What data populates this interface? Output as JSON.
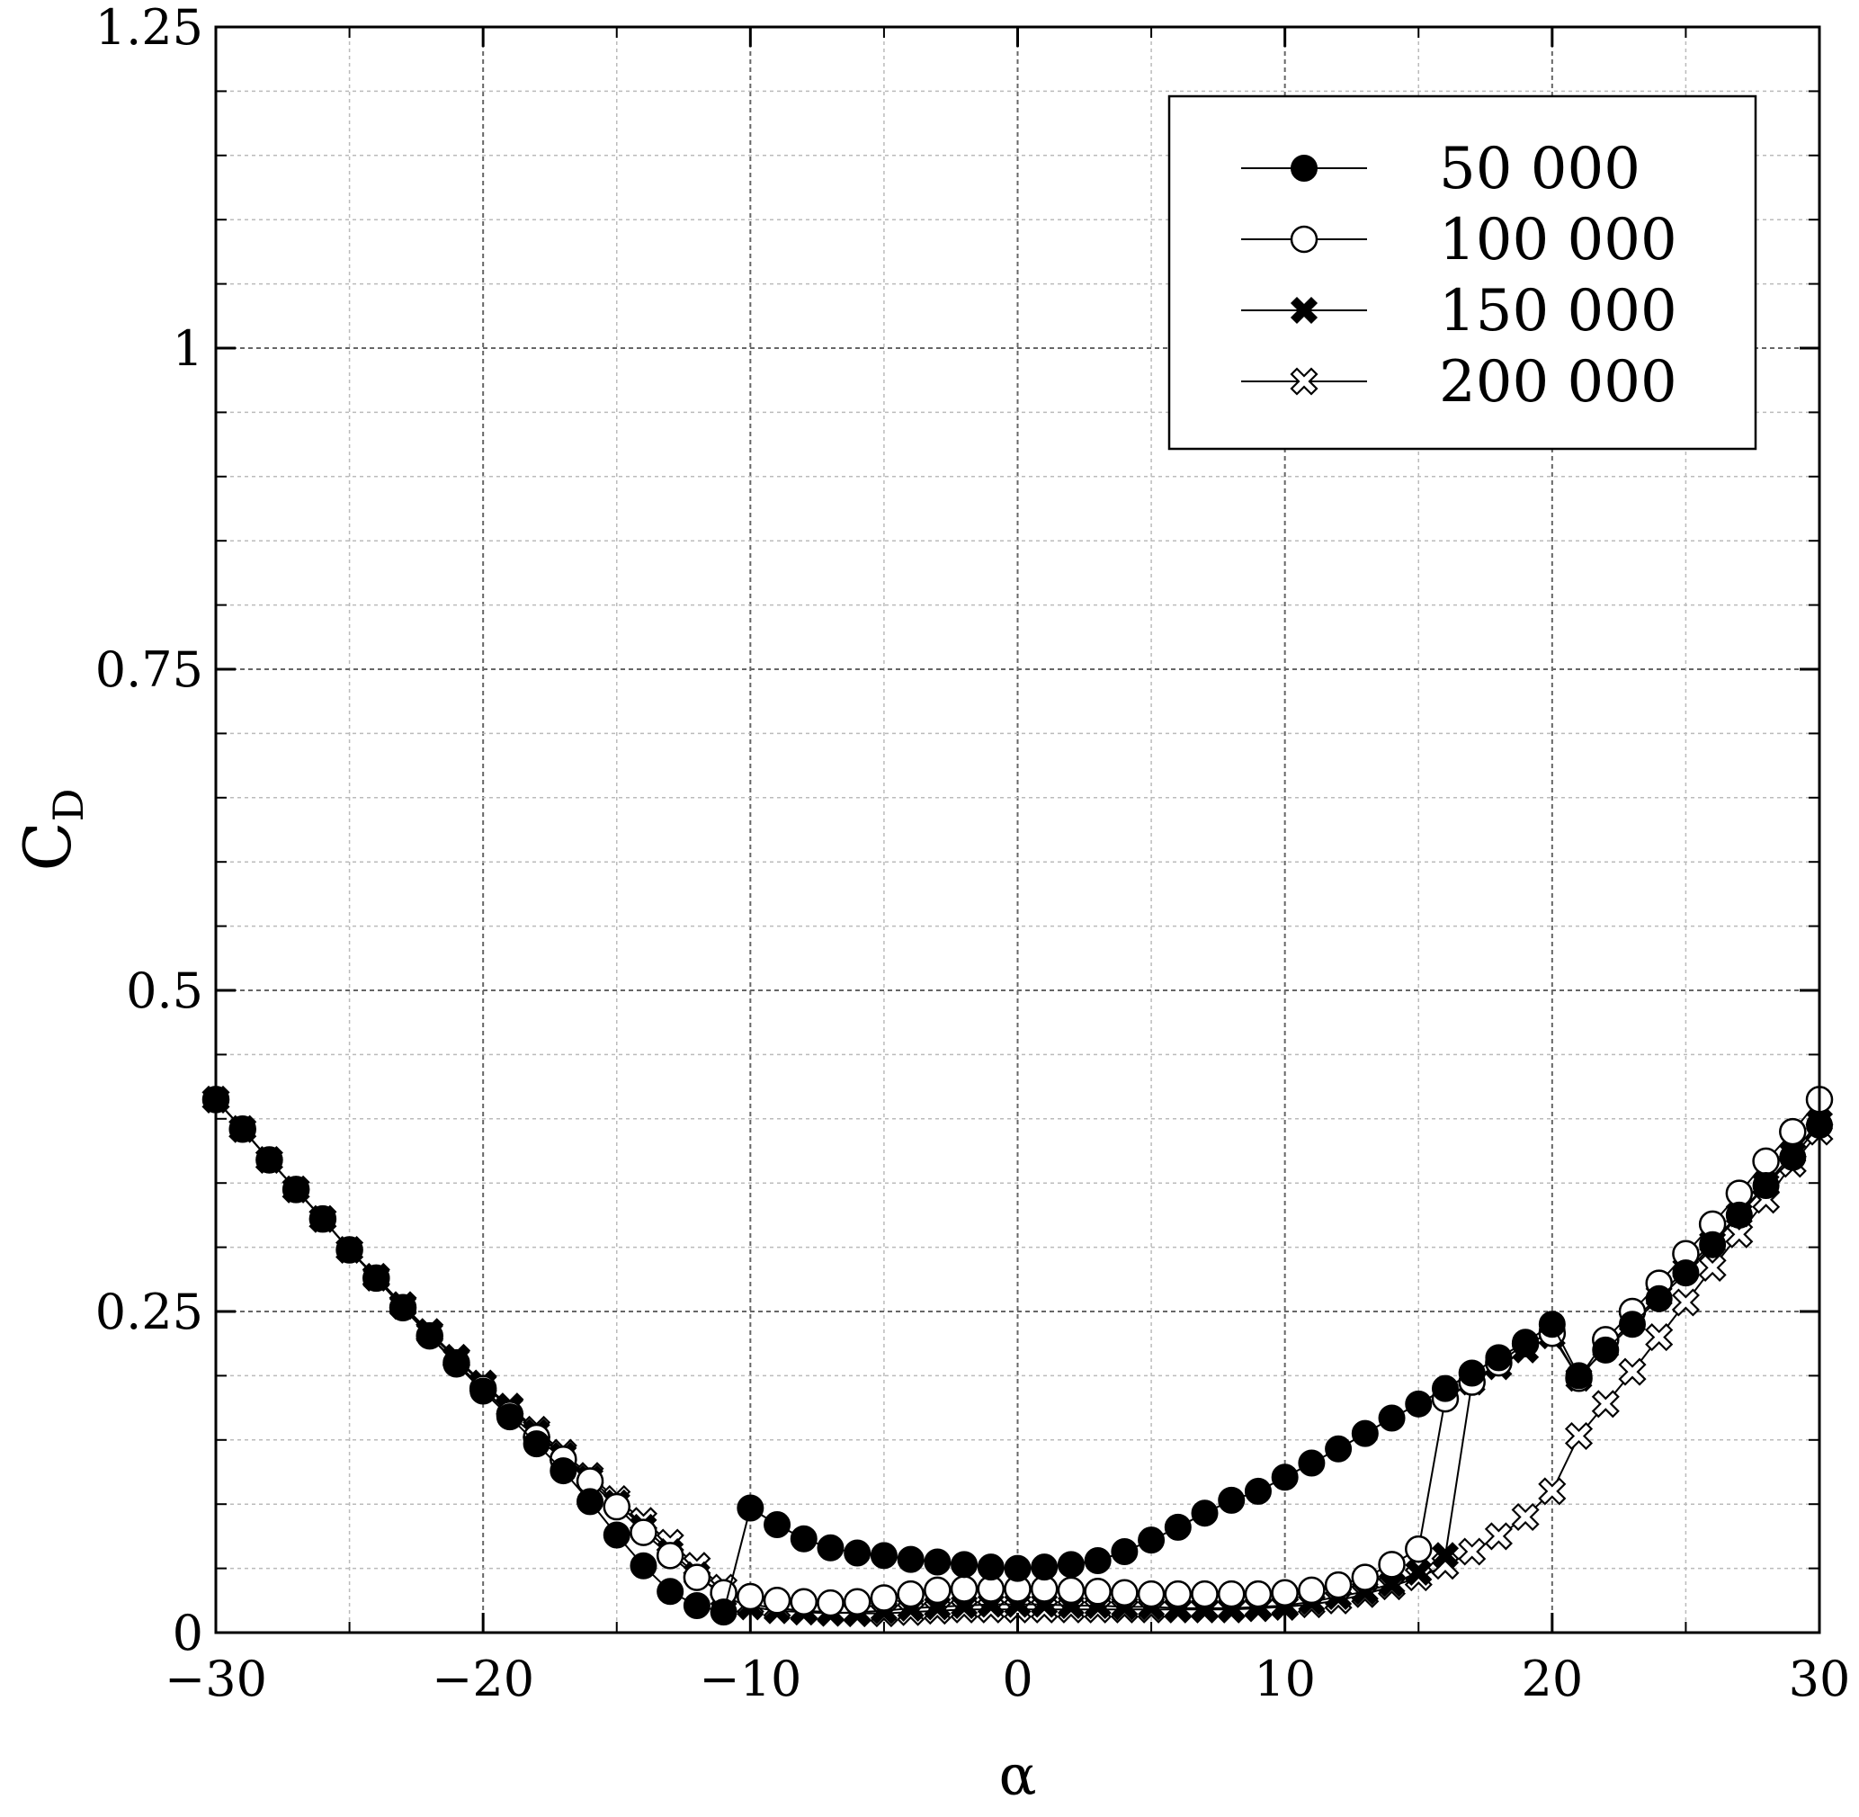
{
  "chart_data": {
    "type": "line",
    "title": "",
    "xlabel": "α",
    "ylabel": {
      "main": "C",
      "sub": "D"
    },
    "xlim": [
      -30,
      30
    ],
    "ylim": [
      0,
      1.25
    ],
    "x_ticks": [
      -30,
      -20,
      -10,
      0,
      10,
      20,
      30
    ],
    "x_tick_labels": [
      "−30",
      "−20",
      "−10",
      "0",
      "10",
      "20",
      "30"
    ],
    "y_ticks": [
      0,
      0.25,
      0.5,
      0.75,
      1,
      1.25
    ],
    "y_tick_labels": [
      "0",
      "0.25",
      "0.5",
      "0.75",
      "1",
      "1.25"
    ],
    "grid": true,
    "minor_grid": true,
    "legend_position": "top-right",
    "series": [
      {
        "name": "50 000",
        "marker": "filled-circle",
        "points": [
          [
            -30,
            0.415
          ],
          [
            -29,
            0.392
          ],
          [
            -28,
            0.368
          ],
          [
            -27,
            0.345
          ],
          [
            -26,
            0.322
          ],
          [
            -25,
            0.298
          ],
          [
            -24,
            0.276
          ],
          [
            -23,
            0.253
          ],
          [
            -22,
            0.231
          ],
          [
            -21,
            0.209
          ],
          [
            -20,
            0.188
          ],
          [
            -19,
            0.168
          ],
          [
            -18,
            0.147
          ],
          [
            -17,
            0.126
          ],
          [
            -16,
            0.102
          ],
          [
            -15,
            0.076
          ],
          [
            -14,
            0.052
          ],
          [
            -13,
            0.032
          ],
          [
            -12,
            0.021
          ],
          [
            -11,
            0.016
          ],
          [
            -10,
            0.097
          ],
          [
            -9,
            0.084
          ],
          [
            -8,
            0.073
          ],
          [
            -7,
            0.066
          ],
          [
            -6,
            0.062
          ],
          [
            -5,
            0.06
          ],
          [
            -4,
            0.057
          ],
          [
            -3,
            0.055
          ],
          [
            -2,
            0.053
          ],
          [
            -1,
            0.051
          ],
          [
            0,
            0.05
          ],
          [
            1,
            0.051
          ],
          [
            2,
            0.053
          ],
          [
            3,
            0.056
          ],
          [
            4,
            0.063
          ],
          [
            5,
            0.072
          ],
          [
            6,
            0.082
          ],
          [
            7,
            0.093
          ],
          [
            8,
            0.103
          ],
          [
            9,
            0.11
          ],
          [
            10,
            0.121
          ],
          [
            11,
            0.132
          ],
          [
            12,
            0.143
          ],
          [
            13,
            0.155
          ],
          [
            14,
            0.167
          ],
          [
            15,
            0.178
          ],
          [
            16,
            0.19
          ],
          [
            17,
            0.202
          ],
          [
            18,
            0.214
          ],
          [
            19,
            0.226
          ],
          [
            20,
            0.24
          ],
          [
            21,
            0.2
          ],
          [
            22,
            0.22
          ],
          [
            23,
            0.24
          ],
          [
            24,
            0.26
          ],
          [
            25,
            0.28
          ],
          [
            26,
            0.302
          ],
          [
            27,
            0.325
          ],
          [
            28,
            0.348
          ],
          [
            29,
            0.37
          ],
          [
            30,
            0.395
          ]
        ]
      },
      {
        "name": "100 000",
        "marker": "open-circle",
        "points": [
          [
            -30,
            0.415
          ],
          [
            -29,
            0.392
          ],
          [
            -28,
            0.368
          ],
          [
            -27,
            0.345
          ],
          [
            -26,
            0.322
          ],
          [
            -25,
            0.298
          ],
          [
            -24,
            0.276
          ],
          [
            -23,
            0.253
          ],
          [
            -22,
            0.231
          ],
          [
            -21,
            0.21
          ],
          [
            -20,
            0.19
          ],
          [
            -19,
            0.17
          ],
          [
            -18,
            0.152
          ],
          [
            -17,
            0.135
          ],
          [
            -16,
            0.118
          ],
          [
            -15,
            0.098
          ],
          [
            -14,
            0.078
          ],
          [
            -13,
            0.06
          ],
          [
            -12,
            0.043
          ],
          [
            -11,
            0.031
          ],
          [
            -10,
            0.028
          ],
          [
            -9,
            0.025
          ],
          [
            -8,
            0.024
          ],
          [
            -7,
            0.023
          ],
          [
            -6,
            0.024
          ],
          [
            -5,
            0.027
          ],
          [
            -4,
            0.03
          ],
          [
            -3,
            0.033
          ],
          [
            -2,
            0.034
          ],
          [
            -1,
            0.034
          ],
          [
            0,
            0.034
          ],
          [
            1,
            0.034
          ],
          [
            2,
            0.033
          ],
          [
            3,
            0.032
          ],
          [
            4,
            0.031
          ],
          [
            5,
            0.03
          ],
          [
            6,
            0.03
          ],
          [
            7,
            0.03
          ],
          [
            8,
            0.03
          ],
          [
            9,
            0.03
          ],
          [
            10,
            0.031
          ],
          [
            11,
            0.033
          ],
          [
            12,
            0.037
          ],
          [
            13,
            0.043
          ],
          [
            14,
            0.053
          ],
          [
            15,
            0.065
          ],
          [
            16,
            0.182
          ],
          [
            17,
            0.195
          ],
          [
            18,
            0.21
          ],
          [
            19,
            0.225
          ],
          [
            20,
            0.233
          ],
          [
            21,
            0.198
          ],
          [
            22,
            0.228
          ],
          [
            23,
            0.25
          ],
          [
            24,
            0.272
          ],
          [
            25,
            0.295
          ],
          [
            26,
            0.318
          ],
          [
            27,
            0.342
          ],
          [
            28,
            0.367
          ],
          [
            29,
            0.39
          ],
          [
            30,
            0.415
          ]
        ]
      },
      {
        "name": "150 000",
        "marker": "filled-cross",
        "points": [
          [
            -30,
            0.415
          ],
          [
            -29,
            0.392
          ],
          [
            -28,
            0.368
          ],
          [
            -27,
            0.345
          ],
          [
            -26,
            0.322
          ],
          [
            -25,
            0.298
          ],
          [
            -24,
            0.276
          ],
          [
            -23,
            0.254
          ],
          [
            -22,
            0.233
          ],
          [
            -21,
            0.213
          ],
          [
            -20,
            0.193
          ],
          [
            -19,
            0.175
          ],
          [
            -18,
            0.156
          ],
          [
            -17,
            0.138
          ],
          [
            -16,
            0.12
          ],
          [
            -15,
            0.101
          ],
          [
            -14,
            0.082
          ],
          [
            -13,
            0.063
          ],
          [
            -12,
            0.045
          ],
          [
            -11,
            0.028
          ],
          [
            -10,
            0.02
          ],
          [
            -9,
            0.017
          ],
          [
            -8,
            0.016
          ],
          [
            -7,
            0.015
          ],
          [
            -6,
            0.016
          ],
          [
            -5,
            0.017
          ],
          [
            -4,
            0.019
          ],
          [
            -3,
            0.02
          ],
          [
            -2,
            0.021
          ],
          [
            -1,
            0.022
          ],
          [
            0,
            0.022
          ],
          [
            1,
            0.022
          ],
          [
            2,
            0.021
          ],
          [
            3,
            0.021
          ],
          [
            4,
            0.02
          ],
          [
            5,
            0.02
          ],
          [
            6,
            0.019
          ],
          [
            7,
            0.019
          ],
          [
            8,
            0.019
          ],
          [
            9,
            0.02
          ],
          [
            10,
            0.021
          ],
          [
            11,
            0.024
          ],
          [
            12,
            0.028
          ],
          [
            13,
            0.032
          ],
          [
            14,
            0.038
          ],
          [
            15,
            0.047
          ],
          [
            16,
            0.06
          ],
          [
            17,
            0.195
          ],
          [
            18,
            0.207
          ],
          [
            19,
            0.22
          ],
          [
            20,
            0.231
          ],
          [
            21,
            0.198
          ],
          [
            22,
            0.222
          ],
          [
            23,
            0.242
          ],
          [
            24,
            0.262
          ],
          [
            25,
            0.283
          ],
          [
            26,
            0.304
          ],
          [
            27,
            0.326
          ],
          [
            28,
            0.349
          ],
          [
            29,
            0.373
          ],
          [
            30,
            0.398
          ]
        ]
      },
      {
        "name": "200 000",
        "marker": "open-cross",
        "points": [
          [
            -30,
            0.415
          ],
          [
            -29,
            0.392
          ],
          [
            -28,
            0.368
          ],
          [
            -27,
            0.345
          ],
          [
            -26,
            0.322
          ],
          [
            -25,
            0.298
          ],
          [
            -24,
            0.277
          ],
          [
            -23,
            0.255
          ],
          [
            -22,
            0.234
          ],
          [
            -21,
            0.214
          ],
          [
            -20,
            0.194
          ],
          [
            -19,
            0.176
          ],
          [
            -18,
            0.158
          ],
          [
            -17,
            0.14
          ],
          [
            -16,
            0.122
          ],
          [
            -15,
            0.104
          ],
          [
            -14,
            0.087
          ],
          [
            -13,
            0.07
          ],
          [
            -12,
            0.052
          ],
          [
            -11,
            0.035
          ],
          [
            -10,
            0.022
          ],
          [
            -9,
            0.019
          ],
          [
            -8,
            0.017
          ],
          [
            -7,
            0.016
          ],
          [
            -6,
            0.015
          ],
          [
            -5,
            0.015
          ],
          [
            -4,
            0.016
          ],
          [
            -3,
            0.017
          ],
          [
            -2,
            0.018
          ],
          [
            -1,
            0.018
          ],
          [
            0,
            0.018
          ],
          [
            1,
            0.018
          ],
          [
            2,
            0.018
          ],
          [
            3,
            0.018
          ],
          [
            4,
            0.018
          ],
          [
            5,
            0.018
          ],
          [
            6,
            0.018
          ],
          [
            7,
            0.018
          ],
          [
            8,
            0.018
          ],
          [
            9,
            0.019
          ],
          [
            10,
            0.02
          ],
          [
            11,
            0.022
          ],
          [
            12,
            0.025
          ],
          [
            13,
            0.03
          ],
          [
            14,
            0.036
          ],
          [
            15,
            0.043
          ],
          [
            16,
            0.052
          ],
          [
            17,
            0.063
          ],
          [
            18,
            0.075
          ],
          [
            19,
            0.09
          ],
          [
            20,
            0.11
          ],
          [
            21,
            0.153
          ],
          [
            22,
            0.178
          ],
          [
            23,
            0.203
          ],
          [
            24,
            0.23
          ],
          [
            25,
            0.257
          ],
          [
            26,
            0.284
          ],
          [
            27,
            0.31
          ],
          [
            28,
            0.337
          ],
          [
            29,
            0.365
          ],
          [
            30,
            0.39
          ]
        ]
      }
    ]
  }
}
